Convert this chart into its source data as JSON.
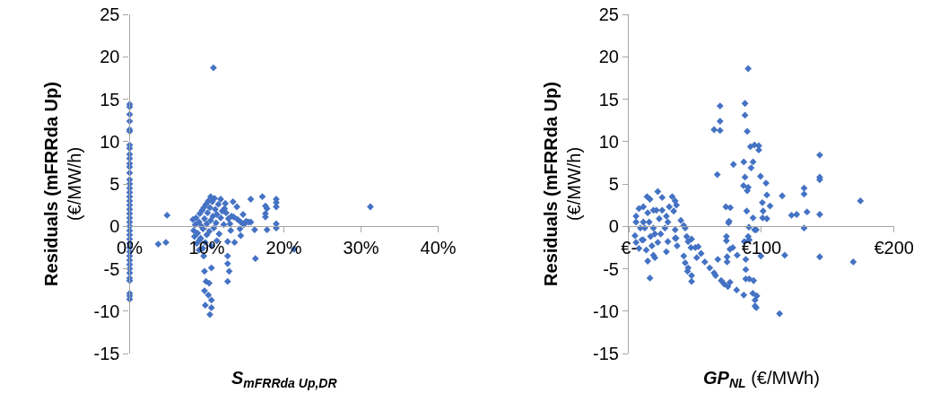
{
  "chart_data": [
    {
      "type": "scatter",
      "xlabel": "S$_{mFRRda Up,DR}$",
      "ylabel": "Residuals (mFRRda Up)\n(€/MW/h)",
      "marker": "diamond",
      "grid": false,
      "xlim": [
        0,
        0.4
      ],
      "xticks": [
        {
          "value": 0,
          "label": "0%"
        },
        {
          "value": 0.1,
          "label": "10%"
        },
        {
          "value": 0.2,
          "label": "20%"
        },
        {
          "value": 0.3,
          "label": "30%"
        },
        {
          "value": 0.4,
          "label": "40%"
        }
      ],
      "ylim": [
        -15,
        25
      ],
      "yticks": [
        -15,
        -10,
        -5,
        0,
        5,
        10,
        15,
        20,
        25
      ],
      "series": [
        {
          "color": "#4472c4",
          "x": [
            0,
            0,
            0,
            0,
            0,
            0,
            0,
            0,
            0,
            0,
            0,
            0,
            0,
            0,
            0,
            0,
            0,
            0,
            0,
            0,
            0,
            0,
            0,
            0,
            0,
            0,
            0,
            0,
            0,
            0,
            0,
            0,
            0,
            0,
            0,
            0,
            0,
            0,
            0,
            0,
            0,
            0.0485,
            0.037,
            0.047,
            0.1086,
            0.104,
            0.098,
            0.106,
            0.102,
            0.106,
            0.097,
            0.099,
            0.103,
            0.097,
            0.106,
            0.127,
            0.129,
            0.127,
            0.127,
            0.127,
            0.136,
            0.144,
            0.113,
            0.095,
            0.091,
            0.157,
            0.172,
            0.19,
            0.19,
            0.19,
            0.176,
            0.178,
            0.176,
            0.176,
            0.19,
            0.19,
            0.178,
            0.162,
            0.157,
            0.154,
            0.163,
            0.213,
            0.312,
            0.134,
            0.118,
            0.139,
            0.147,
            0.144,
            0.151,
            0.132,
            0.123,
            0.124,
            0.082,
            0.083,
            0.084,
            0.085,
            0.086,
            0.087,
            0.088,
            0.09,
            0.09,
            0.091,
            0.092,
            0.093,
            0.094,
            0.095,
            0.096,
            0.096,
            0.097,
            0.098,
            0.099,
            0.1,
            0.1,
            0.101,
            0.102,
            0.103,
            0.104,
            0.105,
            0.105,
            0.106,
            0.107,
            0.108,
            0.109,
            0.11,
            0.111,
            0.112,
            0.113,
            0.115,
            0.116,
            0.118,
            0.12,
            0.122,
            0.125,
            0.128,
            0.13,
            0.131,
            0.135,
            0.14,
            0.143,
            0.148
          ],
          "values": [
            14.4,
            14.1,
            13.2,
            12.4,
            11.4,
            11.2,
            9.6,
            9.2,
            8.5,
            8,
            7.4,
            7,
            6.3,
            5.5,
            5,
            4.5,
            4,
            3.5,
            3,
            2.5,
            2,
            1.5,
            1,
            0.5,
            0,
            -0.5,
            -1,
            -1.5,
            -2,
            -2.5,
            -3,
            -3.5,
            -4,
            -4.5,
            -5,
            -5.5,
            -6.1,
            -6.4,
            -7.9,
            -8.2,
            -8.6,
            1.3,
            -2.1,
            -1.9,
            18.7,
            -10.4,
            -9.3,
            -9.6,
            -8.1,
            -8.7,
            -7.6,
            -6.5,
            -6.7,
            -5.3,
            -4.9,
            -6.5,
            -5.3,
            -4.4,
            -3.5,
            -1.8,
            -1.9,
            -1.1,
            -1.7,
            -2.6,
            -1.6,
            3.2,
            3.5,
            3.2,
            2.8,
            2.3,
            2.4,
            2.1,
            1.5,
            1.1,
            0.3,
            -0.2,
            -0.4,
            -0.4,
            0.5,
            0.5,
            -3.8,
            -2.7,
            2.3,
            2.9,
            3.2,
            2.3,
            1.4,
            0.5,
            0.6,
            1.2,
            2.1,
            2.7,
            0.8,
            -0.5,
            -1.2,
            0.2,
            1,
            -2,
            -0.8,
            0.5,
            -2.8,
            1.5,
            -1.4,
            0,
            1.9,
            -0.3,
            2.2,
            -3.5,
            0.9,
            -1.9,
            2.6,
            0.3,
            -1,
            1.6,
            3,
            -0.6,
            2.2,
            3.5,
            0.7,
            -2.3,
            2.9,
            1.2,
            -0.2,
            3.3,
            2,
            0.4,
            1.4,
            2.6,
            -0.9,
            1,
            1.8,
            0.2,
            1.6,
            0.9,
            0.3,
            -0.5,
            1.1,
            0.8,
            -0.3,
            0.2
          ]
        }
      ]
    },
    {
      "type": "scatter",
      "xlabel": "GP$_{NL}$ (€/MWh)",
      "ylabel": "Residuals (mFRRda Up)\n(€/MW/h)",
      "marker": "diamond",
      "grid": false,
      "xlim": [
        0,
        200
      ],
      "xticks": [
        {
          "value": 0,
          "label": "€-"
        },
        {
          "value": 100,
          "label": "€100"
        },
        {
          "value": 200,
          "label": "€200"
        }
      ],
      "ylim": [
        -15,
        25
      ],
      "yticks": [
        -15,
        -10,
        -5,
        0,
        5,
        10,
        15,
        20,
        25
      ],
      "series": [
        {
          "color": "#4472c4",
          "x": [
            90,
            68.8,
            87.6,
            87.6,
            68.8,
            64.3,
            68.8,
            89.3,
            91.7,
            94.8,
            98,
            98,
            78.9,
            86.7,
            93.7,
            92.2,
            66.7,
            99.3,
            87.6,
            103.5,
            86.5,
            90,
            89.3,
            144,
            144,
            144,
            132.2,
            132.2,
            115.7,
            104.1,
            174.7,
            100.7,
            106.5,
            73.2,
            76.5,
            88.9,
            101.3,
            134.4,
            126.6,
            122.7,
            144,
            93.7,
            100.9,
            104.1,
            75.6,
            75.2,
            90.6,
            132.2,
            94.8,
            96.1,
            73.6,
            73.6,
            90,
            90.8,
            78.4,
            76.3,
            87.1,
            81.7,
            67.1,
            74.1,
            74.1,
            88.2,
            117.6,
            144,
            169.3,
            99.6,
            88.2,
            90.8,
            94.1,
            88.2,
            86.7,
            93.5,
            96.5,
            95.2,
            95.2,
            96.1,
            113.7,
            39.2,
            41.4,
            42.5,
            34.9,
            35.6,
            36.4,
            43.6,
            44.7,
            47.3,
            46.8,
            41.4,
            42.5,
            44.7,
            44.2,
            47.3,
            47.3,
            50.1,
            52.3,
            54.5,
            51.2,
            57.3,
            61,
            64.3,
            65.4,
            69.7,
            71.9,
            74.7,
            76.3,
            81.3,
            4.6,
            5.4,
            5.4,
            7.6,
            10.9,
            13.7,
            15.9,
            21.8,
            18.5,
            12,
            9.8,
            13.1,
            14.2,
            15.9,
            18.5,
            19.6,
            17.4,
            22.9,
            25.1,
            25.1,
            27.2,
            28.3,
            21.8,
            15.3,
            8.7,
            20.7,
            24,
            29.4,
            32.7,
            34.9,
            35.9,
            33.8,
            30.5,
            28.3,
            10.9,
            19.6,
            5.4,
            7.6,
            29.4,
            34.9,
            16.3,
            18.5,
            14.2,
            10.9
          ],
          "values": [
            18.6,
            14.2,
            14.5,
            13.1,
            12.4,
            11.4,
            11.3,
            11.2,
            9.4,
            9.6,
            9.5,
            9,
            7.3,
            7.6,
            7.6,
            6.9,
            6.1,
            5.9,
            5.8,
            5.1,
            4.8,
            4.6,
            4.2,
            8.4,
            5.8,
            5.5,
            4.5,
            3.8,
            3.6,
            3.7,
            3,
            2.8,
            2.4,
            2.3,
            2.2,
            1.8,
            1.8,
            1.7,
            1.4,
            1.3,
            1.4,
            1,
            1,
            0.9,
            0.6,
            0.4,
            -0.1,
            -0.2,
            -0.4,
            -0.4,
            -1.2,
            -1.7,
            -1.2,
            -1.6,
            -2.5,
            -2.7,
            -1.8,
            -3.4,
            -3.9,
            -3.6,
            -4.2,
            -3.9,
            -3.4,
            -3.6,
            -4.2,
            -3.5,
            -5.1,
            -6.2,
            -6.4,
            -6.2,
            -8.1,
            -7.9,
            -8.2,
            -8.7,
            -9.4,
            -9.6,
            -10.3,
            0.7,
            0.1,
            -0.2,
            -0.4,
            -1.4,
            -2.3,
            -1.2,
            -1.8,
            -1.5,
            -2.5,
            -3.5,
            -4.3,
            -4.9,
            -5.3,
            -5.8,
            -6.5,
            -2.5,
            -2.4,
            -3.2,
            -3.7,
            -4.2,
            -4.9,
            -5.5,
            -5.8,
            -6.4,
            -6.8,
            -7.1,
            -6.6,
            -7.5,
            -1.1,
            1.2,
            0.5,
            2.1,
            2.3,
            3.5,
            3.2,
            4.1,
            1.9,
            -0.2,
            -1.6,
            -2.8,
            -4.1,
            -6.1,
            -3.4,
            -0.9,
            -2.3,
            0.9,
            3.4,
            1.9,
            -0.2,
            -3,
            -1.9,
            0.5,
            -0.2,
            1.9,
            -0.9,
            0.5,
            3.5,
            3,
            2.5,
            1.8,
            2.3,
            1.2,
            -1.6,
            -3.7,
            -1.9,
            -2.6,
            -1.8,
            -1.4,
            -1.2,
            -0.2,
            1.6,
            0.5
          ]
        }
      ]
    }
  ]
}
